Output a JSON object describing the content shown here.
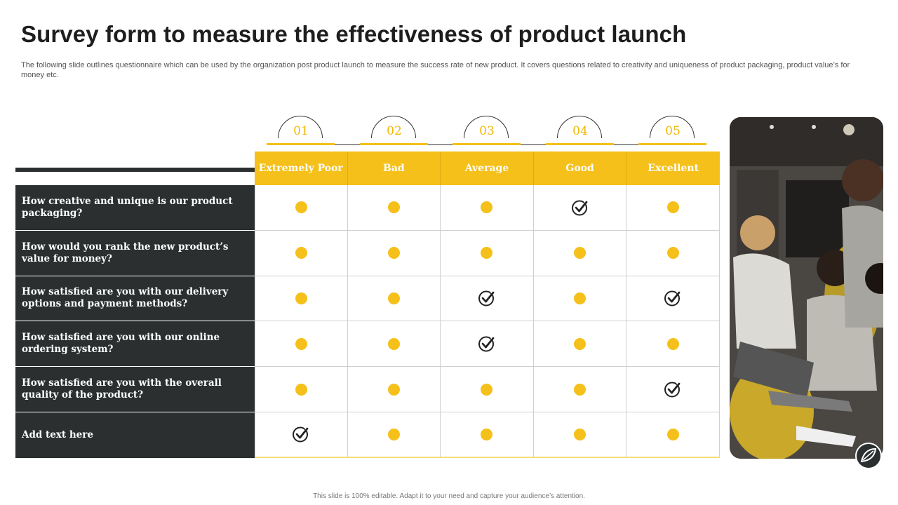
{
  "title": "Survey form to measure the effectiveness of product launch",
  "subtitle": "The following slide outlines questionnaire which can be used by the organization post product launch to measure the success rate of new product. It covers questions related to creativity and uniqueness of product packaging, product value’s for money etc.",
  "footer": "This slide is 100% editable. Adapt it to your need and capture your audience’s attention.",
  "ratings": [
    {
      "number": "01",
      "label": "Extremely Poor"
    },
    {
      "number": "02",
      "label": "Bad"
    },
    {
      "number": "03",
      "label": "Average"
    },
    {
      "number": "04",
      "label": "Good"
    },
    {
      "number": "05",
      "label": "Excellent"
    }
  ],
  "questions": [
    {
      "text": "How creative and unique is our product packaging?",
      "marks": [
        "dot",
        "dot",
        "dot",
        "check",
        "dot"
      ]
    },
    {
      "text": "How would you rank the new product’s value for money?",
      "marks": [
        "dot",
        "dot",
        "dot",
        "dot",
        "dot"
      ]
    },
    {
      "text": "How satisfied are you with our delivery options and payment methods?",
      "marks": [
        "dot",
        "dot",
        "check",
        "dot",
        "check"
      ]
    },
    {
      "text": "How satisfied are you with our online ordering system?",
      "marks": [
        "dot",
        "dot",
        "check",
        "dot",
        "dot"
      ]
    },
    {
      "text": "How satisfied are you with the overall quality of the product?",
      "marks": [
        "dot",
        "dot",
        "dot",
        "dot",
        "check"
      ]
    },
    {
      "text": "Add text here",
      "marks": [
        "check",
        "dot",
        "dot",
        "dot",
        "dot"
      ]
    }
  ],
  "colors": {
    "accent": "#f5c01a",
    "dark": "#2b2f2f"
  }
}
